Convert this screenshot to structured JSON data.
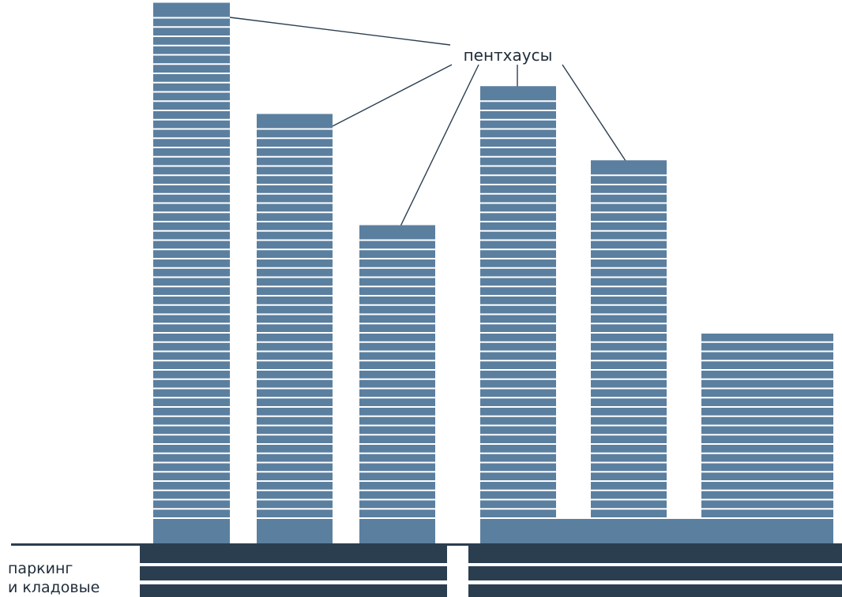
{
  "labels": {
    "penthouses": "пентхаусы",
    "parking_line1": "паркинг",
    "parking_line2": "и кладовые"
  },
  "colors": {
    "tower": "#5b7f9f",
    "underground": "#2b3e50",
    "separator": "#ffffff",
    "leader": "#2b3e50",
    "text": "#1f2d3a"
  },
  "towers": [
    {
      "name": "tower-1",
      "floors": 54,
      "penthouse": true
    },
    {
      "name": "tower-2",
      "floors": 42,
      "penthouse": true
    },
    {
      "name": "tower-3",
      "floors": 30,
      "penthouse": true
    },
    {
      "name": "tower-4",
      "floors": 45,
      "penthouse": true
    },
    {
      "name": "tower-5",
      "floors": 37,
      "penthouse": true
    },
    {
      "name": "tower-6",
      "floors": 20,
      "penthouse": false
    }
  ],
  "underground_levels": 3
}
